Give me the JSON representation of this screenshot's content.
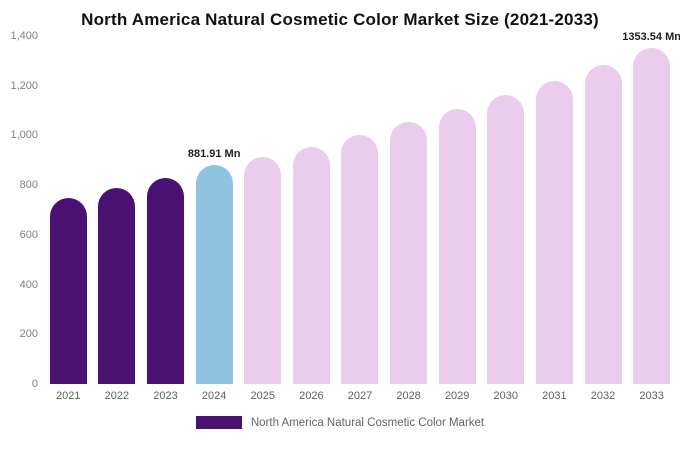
{
  "chart_data": {
    "type": "bar",
    "title": "North America Natural Cosmetic Color Market Size (2021-2033)",
    "categories": [
      "2021",
      "2022",
      "2023",
      "2024",
      "2025",
      "2026",
      "2027",
      "2028",
      "2029",
      "2030",
      "2031",
      "2032",
      "2033"
    ],
    "values": [
      750,
      790,
      828,
      881.91,
      915,
      955,
      1003,
      1055,
      1108,
      1163,
      1220,
      1283,
      1353.54
    ],
    "xlabel": "",
    "ylabel": "",
    "ylim": [
      0,
      1400
    ],
    "yticks": [
      0,
      200,
      400,
      600,
      800,
      1000,
      1200,
      1400
    ],
    "ytick_labels": [
      "0",
      "200",
      "400",
      "600",
      "800",
      "1,000",
      "1,200",
      "1,400"
    ],
    "grid": false,
    "legend_position": "bottom",
    "annotations": [
      {
        "index": 3,
        "text": "881.91 Mn"
      },
      {
        "index": 12,
        "text": "1353.54 Mn"
      }
    ],
    "colors": {
      "historical": "#4a1173",
      "highlight": "#8fc3e0",
      "forecast": "#eaccec"
    },
    "bar_color_keys": [
      "historical",
      "historical",
      "historical",
      "highlight",
      "forecast",
      "forecast",
      "forecast",
      "forecast",
      "forecast",
      "forecast",
      "forecast",
      "forecast",
      "forecast"
    ]
  },
  "legend": {
    "label": "North America Natural Cosmetic Color Market",
    "swatch_color": "#4a1173"
  }
}
